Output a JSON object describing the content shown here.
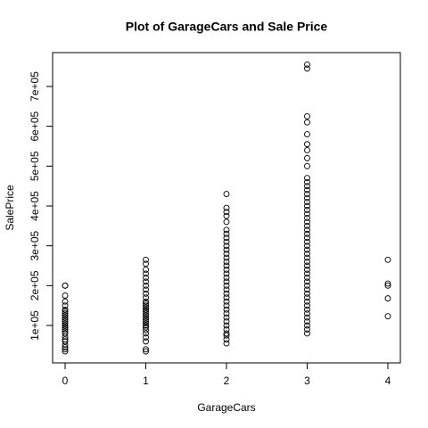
{
  "chart_data": {
    "type": "scatter",
    "title": "Plot of GarageCars and Sale Price",
    "xlabel": "GarageCars",
    "ylabel": "SalePrice",
    "xlim": [
      -0.155,
      4.155
    ],
    "ylim": [
      6000,
      785000
    ],
    "xticks": [
      0,
      1,
      2,
      3,
      4
    ],
    "yticks": [
      {
        "value": 100000,
        "label": "1e+05"
      },
      {
        "value": 200000,
        "label": "2e+05"
      },
      {
        "value": 300000,
        "label": "3e+05"
      },
      {
        "value": 400000,
        "label": "4e+05"
      },
      {
        "value": 500000,
        "label": "5e+05"
      },
      {
        "value": 600000,
        "label": "6e+05"
      },
      {
        "value": 700000,
        "label": "7e+05"
      }
    ],
    "color": "#000000",
    "x": [
      0,
      0,
      0,
      0,
      0,
      0,
      0,
      0,
      0,
      0,
      0,
      0,
      0,
      0,
      0,
      0,
      0,
      0,
      0,
      0,
      0,
      0,
      0,
      0,
      0,
      1,
      1,
      1,
      1,
      1,
      1,
      1,
      1,
      1,
      1,
      1,
      1,
      1,
      1,
      1,
      1,
      1,
      1,
      1,
      1,
      1,
      1,
      1,
      1,
      1,
      1,
      1,
      1,
      1,
      1,
      2,
      2,
      2,
      2,
      2,
      2,
      2,
      2,
      2,
      2,
      2,
      2,
      2,
      2,
      2,
      2,
      2,
      2,
      2,
      2,
      2,
      2,
      2,
      2,
      2,
      2,
      2,
      2,
      2,
      2,
      2,
      2,
      2,
      2,
      2,
      3,
      3,
      3,
      3,
      3,
      3,
      3,
      3,
      3,
      3,
      3,
      3,
      3,
      3,
      3,
      3,
      3,
      3,
      3,
      3,
      3,
      3,
      3,
      3,
      3,
      3,
      3,
      3,
      3,
      3,
      3,
      3,
      3,
      3,
      3,
      3,
      3,
      3,
      3,
      3,
      3,
      3,
      3,
      3,
      3,
      3,
      3,
      3,
      3,
      4,
      4,
      4,
      4,
      4
    ],
    "values": [
      35000,
      40000,
      45000,
      52000,
      60000,
      65000,
      72000,
      80000,
      85000,
      90000,
      95000,
      100000,
      105000,
      110000,
      115000,
      120000,
      125000,
      130000,
      135000,
      140000,
      150000,
      160000,
      175000,
      200000,
      200000,
      35000,
      40000,
      60000,
      70000,
      80000,
      88000,
      95000,
      100000,
      105000,
      110000,
      115000,
      120000,
      125000,
      130000,
      135000,
      140000,
      145000,
      150000,
      155000,
      160000,
      170000,
      180000,
      190000,
      200000,
      210000,
      220000,
      230000,
      240000,
      255000,
      265000,
      55000,
      65000,
      75000,
      80000,
      90000,
      100000,
      110000,
      120000,
      130000,
      140000,
      150000,
      160000,
      170000,
      180000,
      190000,
      200000,
      210000,
      220000,
      230000,
      240000,
      250000,
      260000,
      270000,
      280000,
      290000,
      300000,
      310000,
      320000,
      330000,
      340000,
      360000,
      375000,
      385000,
      395000,
      430000,
      80000,
      90000,
      100000,
      110000,
      120000,
      130000,
      140000,
      150000,
      160000,
      170000,
      180000,
      190000,
      200000,
      210000,
      220000,
      230000,
      240000,
      250000,
      260000,
      270000,
      280000,
      290000,
      300000,
      310000,
      320000,
      330000,
      340000,
      350000,
      360000,
      370000,
      380000,
      390000,
      400000,
      410000,
      420000,
      430000,
      440000,
      450000,
      460000,
      470000,
      500000,
      520000,
      540000,
      555000,
      580000,
      610000,
      625000,
      745000,
      755000,
      123000,
      168000,
      200000,
      205000,
      265000
    ]
  }
}
